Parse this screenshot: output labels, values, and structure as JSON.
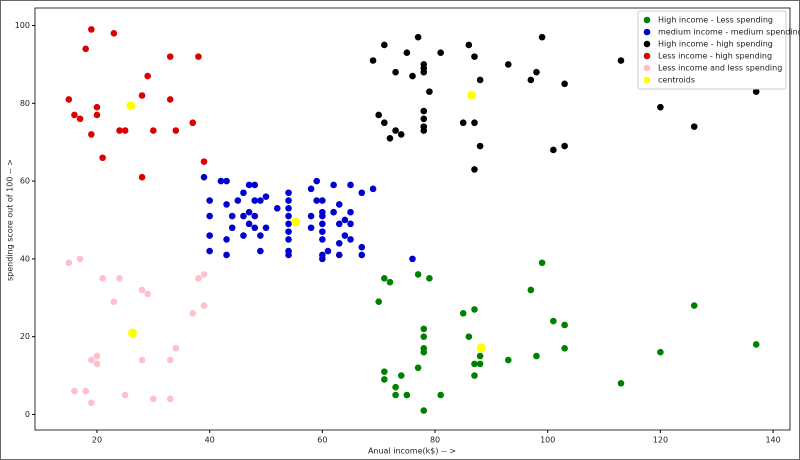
{
  "chart_data": {
    "type": "scatter",
    "x_label": "Anual income(k$) -- >",
    "y_label": "spending score out of 100 -- >",
    "xlim": [
      9,
      143
    ],
    "ylim": [
      -4,
      104.5
    ],
    "xticks": [
      20,
      40,
      60,
      80,
      100,
      120,
      140
    ],
    "yticks": [
      0,
      20,
      40,
      60,
      80,
      100
    ],
    "grid": false,
    "legend": "upper right",
    "series": [
      {
        "name": "High income - Less spending",
        "color": "#008000",
        "x": [
          70,
          71,
          72,
          71,
          71,
          73,
          73,
          74,
          75,
          77,
          77,
          79,
          78,
          78,
          78,
          78,
          78,
          81,
          85,
          86,
          87,
          87,
          87,
          88,
          88,
          93,
          97,
          98,
          99,
          101,
          103,
          103,
          113,
          120,
          126,
          137
        ],
        "values": [
          29,
          35,
          34,
          11,
          9,
          7,
          5,
          10,
          5,
          12,
          36,
          35,
          22,
          20,
          17,
          16,
          1,
          5,
          26,
          20,
          27,
          13,
          10,
          15,
          13,
          14,
          32,
          15,
          39,
          24,
          23,
          17,
          8,
          16,
          28,
          18
        ]
      },
      {
        "name": "medium income - medium spending",
        "color": "#0000cc",
        "x": [
          39,
          40,
          40,
          40,
          40,
          42,
          43,
          43,
          44,
          43,
          43,
          44,
          45,
          46,
          46,
          46,
          47,
          48,
          47,
          47,
          48,
          48,
          48,
          49,
          49,
          49,
          50,
          50,
          52,
          54,
          54,
          54,
          54,
          54,
          54,
          54,
          54,
          54,
          58,
          58,
          58,
          59,
          59,
          60,
          60,
          60,
          60,
          60,
          60,
          60,
          60,
          61,
          62,
          62,
          63,
          63,
          63,
          63,
          64,
          64,
          65,
          65,
          65,
          65,
          67,
          67,
          67,
          69,
          76
        ],
        "values": [
          61,
          42,
          46,
          51,
          55,
          60,
          60,
          54,
          48,
          45,
          41,
          51,
          55,
          57,
          51,
          46,
          59,
          59,
          52,
          49,
          55,
          51,
          48,
          55,
          46,
          42,
          48,
          56,
          53,
          57,
          55,
          53,
          51,
          49,
          47,
          45,
          42,
          41,
          58,
          51,
          48,
          60,
          55,
          52,
          41,
          55,
          51,
          49,
          47,
          45,
          40,
          42,
          59,
          52,
          54,
          49,
          44,
          41,
          50,
          46,
          59,
          52,
          49,
          45,
          57,
          43,
          41,
          58,
          40
        ]
      },
      {
        "name": "High income - high spending",
        "color": "#000000",
        "x": [
          69,
          71,
          77,
          75,
          73,
          76,
          78,
          78,
          78,
          79,
          81,
          86,
          87,
          88,
          93,
          97,
          98,
          99,
          103,
          113,
          70,
          71,
          72,
          73,
          74,
          78,
          78,
          78,
          78,
          85,
          87,
          88,
          87,
          101,
          103,
          120,
          126,
          137
        ],
        "values": [
          91,
          95,
          97,
          93,
          88,
          87,
          90,
          89,
          88,
          83,
          93,
          95,
          92,
          86,
          90,
          86,
          88,
          97,
          85,
          91,
          77,
          75,
          71,
          73,
          72,
          78,
          76,
          74,
          73,
          75,
          75,
          69,
          63,
          68,
          69,
          79,
          74,
          83
        ]
      },
      {
        "name": "Less income - high spending",
        "color": "#dd0000",
        "x": [
          19,
          23,
          18,
          33,
          38,
          29,
          15,
          28,
          33,
          20,
          20,
          16,
          17,
          37,
          24,
          25,
          30,
          34,
          19,
          21,
          39,
          28
        ],
        "values": [
          99,
          98,
          94,
          92,
          92,
          87,
          81,
          82,
          81,
          79,
          77,
          77,
          76,
          75,
          73,
          73,
          73,
          73,
          72,
          66,
          65,
          61
        ]
      },
      {
        "name": "Less income and less spending",
        "color": "#ffc0cb",
        "x": [
          15,
          17,
          21,
          24,
          28,
          29,
          38,
          39,
          23,
          37,
          39,
          34,
          20,
          20,
          19,
          28,
          33,
          16,
          18,
          19,
          25,
          30,
          33
        ],
        "values": [
          39,
          40,
          35,
          35,
          32,
          31,
          35,
          36,
          29,
          26,
          28,
          17,
          15,
          13,
          14,
          14,
          14,
          6,
          6,
          3,
          5,
          4,
          4
        ]
      },
      {
        "name": "centroids",
        "color": "#ffff00",
        "x": [
          26,
          26.3,
          55.3,
          86.5,
          88.2
        ],
        "values": [
          79.4,
          20.9,
          49.5,
          82.1,
          17.1
        ]
      }
    ]
  }
}
